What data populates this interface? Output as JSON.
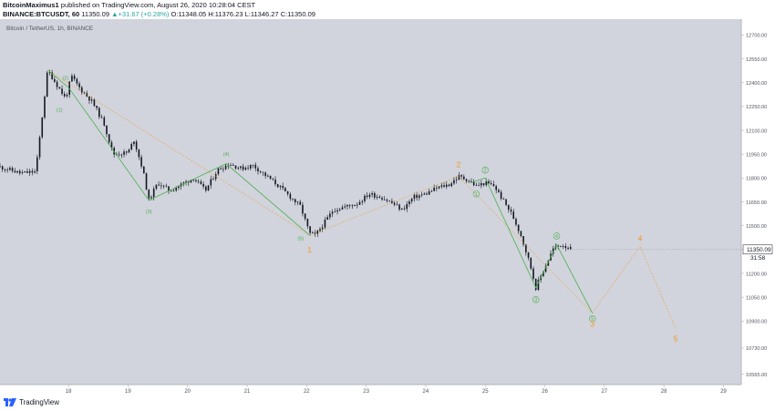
{
  "header": {
    "author": "BitcoinMaximus1",
    "published_text": "published on TradingView.com, August 26, 2020 10:28:04 CEST",
    "symbol": "BINANCE:BTCUSDT, 60",
    "last": "11350.09",
    "change": "+31.67 (+0.28%)",
    "o_label": "O:",
    "o_value": "11348.05",
    "h_label": "H:",
    "h_value": "11376.23",
    "l_label": "L:",
    "l_value": "11346.27",
    "c_label": "C:",
    "c_value": "11350.09"
  },
  "legend_text": "Bitcoin / TetherUS, 1h, BINANCE",
  "footer": {
    "brand": "TradingView"
  },
  "colors": {
    "plot_bg": "#d1d4dc",
    "candle": "#131722",
    "wave_green": "#4caf50",
    "wave_orange": "#f7931a",
    "price_tag": "#ffffff"
  },
  "chart_data": {
    "type": "candlestick",
    "instrument": "BTCUSDT",
    "timeframe": "1h",
    "x_tick_labels": [
      "18",
      "19",
      "20",
      "21",
      "22",
      "23",
      "24",
      "25",
      "26",
      "27",
      "28",
      "29"
    ],
    "x_ticks_day": [
      18,
      19,
      20,
      21,
      22,
      23,
      24,
      25,
      26,
      27,
      28,
      29
    ],
    "y_tick_labels": [
      "12700.00",
      "12550.00",
      "12400.00",
      "12250.00",
      "12100.00",
      "11950.00",
      "11800.00",
      "11650.00",
      "11500.00",
      "11350.00",
      "11200.00",
      "11050.00",
      "10900.00",
      "10730.00",
      "10565.00"
    ],
    "xlim": [
      16.85,
      29.3
    ],
    "ylim": [
      10500,
      12800
    ],
    "price_path": [
      [
        16.85,
        11870
      ],
      [
        17.2,
        11830
      ],
      [
        17.45,
        11840
      ],
      [
        17.55,
        12160
      ],
      [
        17.65,
        12480
      ],
      [
        17.8,
        12390
      ],
      [
        17.95,
        12300
      ],
      [
        18.05,
        12440
      ],
      [
        18.2,
        12360
      ],
      [
        18.4,
        12280
      ],
      [
        18.6,
        12140
      ],
      [
        18.75,
        11950
      ],
      [
        19.0,
        11960
      ],
      [
        19.1,
        12040
      ],
      [
        19.25,
        11850
      ],
      [
        19.35,
        11660
      ],
      [
        19.5,
        11770
      ],
      [
        19.7,
        11720
      ],
      [
        19.9,
        11760
      ],
      [
        20.1,
        11800
      ],
      [
        20.3,
        11720
      ],
      [
        20.5,
        11850
      ],
      [
        20.7,
        11890
      ],
      [
        20.9,
        11860
      ],
      [
        21.1,
        11880
      ],
      [
        21.3,
        11820
      ],
      [
        21.5,
        11760
      ],
      [
        21.7,
        11690
      ],
      [
        21.9,
        11620
      ],
      [
        22.05,
        11450
      ],
      [
        22.15,
        11440
      ],
      [
        22.3,
        11520
      ],
      [
        22.45,
        11600
      ],
      [
        22.65,
        11620
      ],
      [
        22.85,
        11640
      ],
      [
        23.05,
        11700
      ],
      [
        23.25,
        11680
      ],
      [
        23.45,
        11640
      ],
      [
        23.6,
        11600
      ],
      [
        23.8,
        11680
      ],
      [
        24.0,
        11700
      ],
      [
        24.2,
        11740
      ],
      [
        24.4,
        11760
      ],
      [
        24.55,
        11810
      ],
      [
        24.7,
        11790
      ],
      [
        24.85,
        11750
      ],
      [
        25.0,
        11770
      ],
      [
        25.15,
        11750
      ],
      [
        25.3,
        11660
      ],
      [
        25.45,
        11570
      ],
      [
        25.6,
        11440
      ],
      [
        25.75,
        11260
      ],
      [
        25.85,
        11110
      ],
      [
        26.0,
        11240
      ],
      [
        26.15,
        11360
      ],
      [
        26.3,
        11380
      ],
      [
        26.45,
        11350
      ]
    ],
    "wave_green_lines": [
      [
        [
          17.65,
          12480
        ],
        [
          18.0,
          12370
        ],
        [
          19.35,
          11660
        ],
        [
          20.65,
          11890
        ],
        [
          22.05,
          11440
        ]
      ],
      [
        [
          24.75,
          11770
        ],
        [
          25.0,
          11800
        ],
        [
          25.85,
          11110
        ],
        [
          26.2,
          11380
        ],
        [
          26.8,
          10950
        ]
      ]
    ],
    "wave_orange_lines": [
      [
        [
          17.65,
          12480
        ],
        [
          22.05,
          11440
        ],
        [
          24.55,
          11810
        ],
        [
          26.8,
          10950
        ],
        [
          27.6,
          11370
        ],
        [
          28.2,
          10850
        ]
      ]
    ],
    "green_labels": [
      {
        "text": "(2)",
        "x": 17.95,
        "y": 12430
      },
      {
        "text": "(1)",
        "x": 17.85,
        "y": 12230
      },
      {
        "text": "(3)",
        "x": 19.35,
        "y": 11590
      },
      {
        "text": "(4)",
        "x": 20.65,
        "y": 11950
      },
      {
        "text": "(5)",
        "x": 21.9,
        "y": 11420
      },
      {
        "text": "1",
        "x": 24.85,
        "y": 11700
      },
      {
        "text": "2",
        "x": 25.0,
        "y": 11850
      },
      {
        "text": "3",
        "x": 25.85,
        "y": 11035
      },
      {
        "text": "4",
        "x": 26.2,
        "y": 11435
      },
      {
        "text": "5",
        "x": 26.8,
        "y": 10915
      }
    ],
    "orange_labels": [
      {
        "text": "1",
        "x": 22.05,
        "y": 11350
      },
      {
        "text": "2",
        "x": 24.55,
        "y": 11885
      },
      {
        "text": "3",
        "x": 26.8,
        "y": 10880
      },
      {
        "text": "4",
        "x": 27.6,
        "y": 11420
      },
      {
        "text": "5",
        "x": 28.2,
        "y": 10790
      }
    ],
    "last_price_label": "11350.09",
    "countdown_label": "31:58",
    "last_price": 11350.09
  }
}
